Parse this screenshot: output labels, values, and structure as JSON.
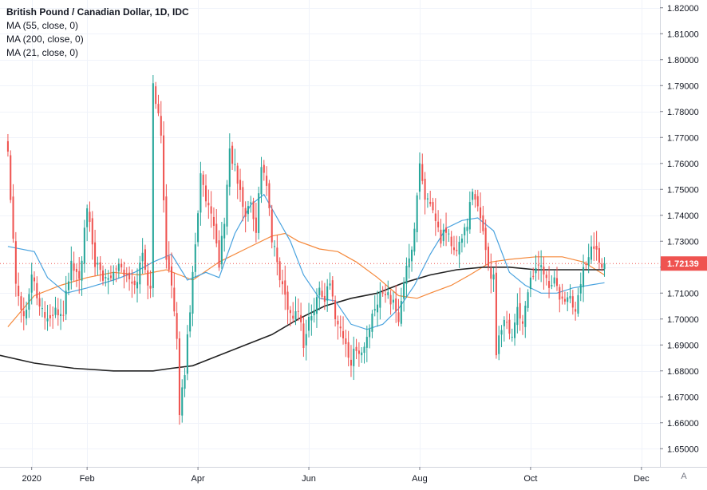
{
  "legend": {
    "title": "British Pound / Canadian Dollar, 1D, IDC",
    "indicators": [
      "MA (55, close, 0)",
      "MA (200, close, 0)",
      "MA (21, close, 0)"
    ]
  },
  "auto_scale_label": "A",
  "colors": {
    "up": "#26a69a",
    "down": "#ef5350",
    "ma55": "#f5883a",
    "ma200": "#222222",
    "ma21": "#4aa3df",
    "last_price_bg": "#ef5350",
    "grid": "#f0f3fa"
  },
  "chart_data": {
    "type": "candlestick",
    "symbol": "British Pound / Canadian Dollar",
    "interval": "1D",
    "source": "IDC",
    "y_axis": {
      "ylim": [
        1.643,
        1.823
      ],
      "ticks": [
        "1.65000",
        "1.66000",
        "1.67000",
        "1.68000",
        "1.69000",
        "1.70000",
        "1.71000",
        "1.72000",
        "1.73000",
        "1.74000",
        "1.75000",
        "1.76000",
        "1.77000",
        "1.78000",
        "1.79000",
        "1.80000",
        "1.81000",
        "1.82000"
      ],
      "last_price": "1.72139"
    },
    "x_axis": {
      "labels": [
        {
          "label": "2020",
          "index": 9
        },
        {
          "label": "Feb",
          "index": 30
        },
        {
          "label": "Apr",
          "index": 72
        },
        {
          "label": "Jun",
          "index": 114
        },
        {
          "label": "Aug",
          "index": 156
        },
        {
          "label": "Oct",
          "index": 198
        },
        {
          "label": "Dec",
          "index": 240
        }
      ],
      "index_range": [
        -3,
        247
      ]
    },
    "grid": true,
    "anchors": [
      [
        0,
        1.765
      ],
      [
        3,
        1.715
      ],
      [
        6,
        1.7
      ],
      [
        9,
        1.718
      ],
      [
        12,
        1.705
      ],
      [
        15,
        1.7
      ],
      [
        18,
        1.702
      ],
      [
        21,
        1.703
      ],
      [
        24,
        1.722
      ],
      [
        27,
        1.715
      ],
      [
        30,
        1.742
      ],
      [
        33,
        1.722
      ],
      [
        36,
        1.715
      ],
      [
        39,
        1.718
      ],
      [
        42,
        1.722
      ],
      [
        45,
        1.716
      ],
      [
        48,
        1.712
      ],
      [
        51,
        1.725
      ],
      [
        54,
        1.71
      ],
      [
        55,
        1.79
      ],
      [
        56,
        1.785
      ],
      [
        58,
        1.77
      ],
      [
        60,
        1.725
      ],
      [
        62,
        1.712
      ],
      [
        64,
        1.69
      ],
      [
        65,
        1.665
      ],
      [
        67,
        1.68
      ],
      [
        69,
        1.705
      ],
      [
        71,
        1.73
      ],
      [
        73,
        1.755
      ],
      [
        75,
        1.745
      ],
      [
        78,
        1.735
      ],
      [
        80,
        1.722
      ],
      [
        82,
        1.738
      ],
      [
        84,
        1.765
      ],
      [
        86,
        1.758
      ],
      [
        88,
        1.748
      ],
      [
        90,
        1.74
      ],
      [
        92,
        1.745
      ],
      [
        94,
        1.735
      ],
      [
        96,
        1.76
      ],
      [
        98,
        1.752
      ],
      [
        100,
        1.73
      ],
      [
        102,
        1.722
      ],
      [
        104,
        1.712
      ],
      [
        106,
        1.706
      ],
      [
        108,
        1.7
      ],
      [
        110,
        1.705
      ],
      [
        112,
        1.69
      ],
      [
        114,
        1.7
      ],
      [
        116,
        1.703
      ],
      [
        118,
        1.712
      ],
      [
        120,
        1.708
      ],
      [
        122,
        1.713
      ],
      [
        124,
        1.702
      ],
      [
        126,
        1.696
      ],
      [
        128,
        1.69
      ],
      [
        130,
        1.683
      ],
      [
        132,
        1.69
      ],
      [
        134,
        1.686
      ],
      [
        136,
        1.693
      ],
      [
        138,
        1.7
      ],
      [
        140,
        1.706
      ],
      [
        142,
        1.712
      ],
      [
        144,
        1.71
      ],
      [
        146,
        1.705
      ],
      [
        148,
        1.7
      ],
      [
        150,
        1.715
      ],
      [
        152,
        1.722
      ],
      [
        154,
        1.735
      ],
      [
        156,
        1.76
      ],
      [
        158,
        1.748
      ],
      [
        160,
        1.742
      ],
      [
        162,
        1.738
      ],
      [
        164,
        1.73
      ],
      [
        166,
        1.735
      ],
      [
        168,
        1.728
      ],
      [
        170,
        1.725
      ],
      [
        172,
        1.732
      ],
      [
        174,
        1.738
      ],
      [
        176,
        1.748
      ],
      [
        178,
        1.742
      ],
      [
        180,
        1.735
      ],
      [
        182,
        1.72
      ],
      [
        184,
        1.715
      ],
      [
        185,
        1.688
      ],
      [
        187,
        1.698
      ],
      [
        189,
        1.7
      ],
      [
        191,
        1.693
      ],
      [
        193,
        1.705
      ],
      [
        195,
        1.698
      ],
      [
        197,
        1.712
      ],
      [
        199,
        1.715
      ],
      [
        201,
        1.722
      ],
      [
        203,
        1.718
      ],
      [
        205,
        1.712
      ],
      [
        207,
        1.715
      ],
      [
        209,
        1.708
      ],
      [
        211,
        1.705
      ],
      [
        213,
        1.71
      ],
      [
        215,
        1.702
      ],
      [
        217,
        1.715
      ],
      [
        219,
        1.722
      ],
      [
        221,
        1.728
      ],
      [
        223,
        1.725
      ],
      [
        225,
        1.722
      ],
      [
        226,
        1.7214
      ]
    ],
    "ma_series": [
      {
        "name": "MA (55, close, 0)",
        "points": [
          [
            0,
            1.697
          ],
          [
            10,
            1.709
          ],
          [
            20,
            1.713
          ],
          [
            30,
            1.716
          ],
          [
            40,
            1.718
          ],
          [
            50,
            1.717
          ],
          [
            60,
            1.719
          ],
          [
            70,
            1.715
          ],
          [
            80,
            1.722
          ],
          [
            90,
            1.727
          ],
          [
            100,
            1.732
          ],
          [
            105,
            1.733
          ],
          [
            110,
            1.73
          ],
          [
            118,
            1.727
          ],
          [
            125,
            1.726
          ],
          [
            132,
            1.722
          ],
          [
            140,
            1.716
          ],
          [
            148,
            1.709
          ],
          [
            155,
            1.708
          ],
          [
            160,
            1.71
          ],
          [
            168,
            1.713
          ],
          [
            175,
            1.717
          ],
          [
            183,
            1.722
          ],
          [
            190,
            1.723
          ],
          [
            200,
            1.724
          ],
          [
            210,
            1.724
          ],
          [
            218,
            1.722
          ],
          [
            226,
            1.717
          ]
        ]
      },
      {
        "name": "MA (200, close, 0)",
        "points": [
          [
            -3,
            1.686
          ],
          [
            10,
            1.683
          ],
          [
            25,
            1.681
          ],
          [
            40,
            1.68
          ],
          [
            55,
            1.68
          ],
          [
            62,
            1.681
          ],
          [
            70,
            1.682
          ],
          [
            80,
            1.686
          ],
          [
            90,
            1.69
          ],
          [
            100,
            1.694
          ],
          [
            110,
            1.7
          ],
          [
            120,
            1.705
          ],
          [
            130,
            1.708
          ],
          [
            140,
            1.71
          ],
          [
            150,
            1.714
          ],
          [
            160,
            1.717
          ],
          [
            170,
            1.719
          ],
          [
            180,
            1.72
          ],
          [
            190,
            1.72
          ],
          [
            200,
            1.719
          ],
          [
            210,
            1.719
          ],
          [
            226,
            1.719
          ]
        ]
      },
      {
        "name": "MA (21, close, 0)",
        "points": [
          [
            0,
            1.728
          ],
          [
            10,
            1.726
          ],
          [
            15,
            1.716
          ],
          [
            22,
            1.71
          ],
          [
            30,
            1.712
          ],
          [
            40,
            1.715
          ],
          [
            48,
            1.718
          ],
          [
            55,
            1.722
          ],
          [
            62,
            1.725
          ],
          [
            68,
            1.715
          ],
          [
            75,
            1.718
          ],
          [
            80,
            1.716
          ],
          [
            86,
            1.733
          ],
          [
            92,
            1.744
          ],
          [
            97,
            1.748
          ],
          [
            102,
            1.739
          ],
          [
            107,
            1.73
          ],
          [
            112,
            1.717
          ],
          [
            118,
            1.708
          ],
          [
            124,
            1.707
          ],
          [
            130,
            1.698
          ],
          [
            136,
            1.696
          ],
          [
            142,
            1.698
          ],
          [
            148,
            1.704
          ],
          [
            154,
            1.713
          ],
          [
            160,
            1.725
          ],
          [
            166,
            1.735
          ],
          [
            172,
            1.738
          ],
          [
            178,
            1.739
          ],
          [
            184,
            1.734
          ],
          [
            190,
            1.718
          ],
          [
            196,
            1.713
          ],
          [
            202,
            1.71
          ],
          [
            208,
            1.71
          ],
          [
            214,
            1.712
          ],
          [
            220,
            1.713
          ],
          [
            226,
            1.714
          ]
        ]
      }
    ]
  }
}
